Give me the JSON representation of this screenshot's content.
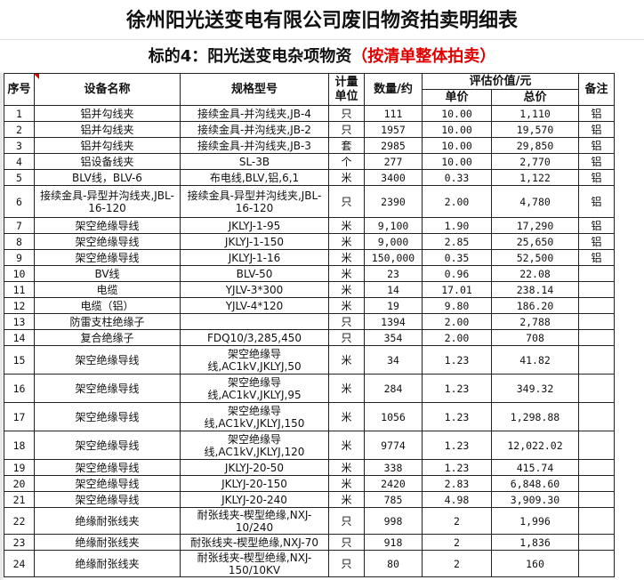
{
  "title": "徐州阳光送变电有限公司废旧物资拍卖明细表",
  "subtitle": {
    "main": "标的4：阳光送变电杂项物资",
    "highlight": "（按清单整体拍卖）",
    "highlight_color": "#e00000"
  },
  "headers": {
    "seq": "序号",
    "name": "设备名称",
    "spec": "规格型号",
    "unit": "计量单位",
    "qty": "数量/约",
    "value_group": "评估价值/元",
    "unit_price": "单价",
    "total": "总价",
    "note": "备注"
  },
  "rows": [
    [
      "1",
      "铝并勾线夹",
      "接续金具-并沟线夹,JB-4",
      "只",
      "111",
      "10.00",
      "1,110",
      "铝"
    ],
    [
      "2",
      "铝并勾线夹",
      "接续金具-并沟线夹,JB-2",
      "只",
      "1957",
      "10.00",
      "19,570",
      "铝"
    ],
    [
      "3",
      "铝并勾线夹",
      "接续金具-并沟线夹,JB-3",
      "套",
      "2985",
      "10.00",
      "29,850",
      "铝"
    ],
    [
      "4",
      "铝设备线夹",
      "SL-3B",
      "个",
      "277",
      "10.00",
      "2,770",
      "铝"
    ],
    [
      "5",
      "BLV线，BLV-6",
      "布电线,BLV,铝,6,1",
      "米",
      "3400",
      "0.33",
      "1,122",
      "铝"
    ],
    [
      "6",
      "接续金具-异型并沟线夹,JBL-16-120",
      "接续金具-异型并沟线夹,JBL-16-120",
      "只",
      "2390",
      "2.00",
      "4,780",
      "铝"
    ],
    [
      "7",
      "架空绝缘导线",
      "JKLYJ-1-95",
      "米",
      "9,100",
      "1.90",
      "17,290",
      "铝"
    ],
    [
      "8",
      "架空绝缘导线",
      "JKLYJ-1-150",
      "米",
      "9,000",
      "2.85",
      "25,650",
      "铝"
    ],
    [
      "9",
      "架空绝缘导线",
      "JKLYJ-1-16",
      "米",
      "150,000",
      "0.35",
      "52,500",
      "铝"
    ],
    [
      "10",
      "BV线",
      "BLV-50",
      "米",
      "23",
      "0.96",
      "22.08",
      ""
    ],
    [
      "11",
      "电缆",
      "YJLV-3*300",
      "米",
      "14",
      "17.01",
      "238.14",
      ""
    ],
    [
      "12",
      "电缆（铝）",
      "YJLV-4*120",
      "米",
      "19",
      "9.80",
      "186.20",
      ""
    ],
    [
      "13",
      "防雷支柱绝缘子",
      "",
      "只",
      "1394",
      "2.00",
      "2,788",
      ""
    ],
    [
      "14",
      "复合绝缘子",
      "FDQ10/3,285,450",
      "只",
      "354",
      "2.00",
      "708",
      ""
    ],
    [
      "15",
      "架空绝缘导线",
      "架空绝缘导线,AC1kV,JKLYJ,50",
      "米",
      "34",
      "1.23",
      "41.82",
      ""
    ],
    [
      "16",
      "架空绝缘导线",
      "架空绝缘导线,AC1kV,JKLYJ,95",
      "米",
      "284",
      "1.23",
      "349.32",
      ""
    ],
    [
      "17",
      "架空绝缘导线",
      "架空绝缘导线,AC1kV,JKLYJ,150",
      "米",
      "1056",
      "1.23",
      "1,298.88",
      ""
    ],
    [
      "18",
      "架空绝缘导线",
      "架空绝缘导线,AC1kV,JKLYJ,120",
      "米",
      "9774",
      "1.23",
      "12,022.02",
      ""
    ],
    [
      "19",
      "架空绝缘导线",
      "JKLYJ-20-50",
      "米",
      "338",
      "1.23",
      "415.74",
      ""
    ],
    [
      "20",
      "架空绝缘导线",
      "JKLYJ-20-150",
      "米",
      "2420",
      "2.83",
      "6,848.60",
      ""
    ],
    [
      "21",
      "架空绝缘导线",
      "JKLYJ-20-240",
      "米",
      "785",
      "4.98",
      "3,909.30",
      ""
    ],
    [
      "22",
      "绝缘耐张线夹",
      "耐张线夹-楔型绝缘,NXJ-10/240",
      "只",
      "998",
      "2",
      "1,996",
      ""
    ],
    [
      "23",
      "绝缘耐张线夹",
      "耐张线夹-楔型绝缘,NXJ-70",
      "只",
      "918",
      "2",
      "1,836",
      ""
    ],
    [
      "24",
      "绝缘耐张线夹",
      "耐张线夹-楔型绝缘,NXJ-150/10KV",
      "只",
      "80",
      "2",
      "160",
      ""
    ]
  ]
}
